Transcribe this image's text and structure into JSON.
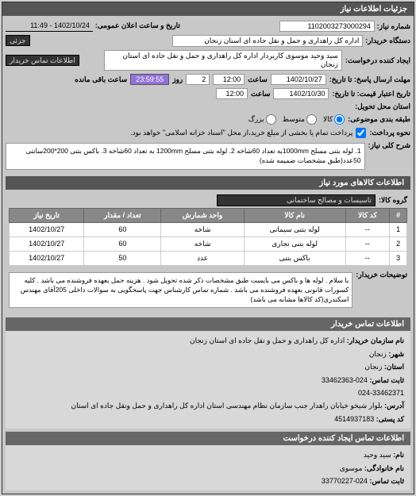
{
  "panels": {
    "details_title": "جزئیات اطلاعات نیاز",
    "contact_title": "اطلاعات تماس ایجاد کننده درخواست",
    "buyer_contact_title": "اطلاعات تماس خریدار"
  },
  "header": {
    "req_number_label": "شماره نیاز:",
    "req_number": "1102003273000294",
    "announce_label": "تاریخ و ساعت اعلان عمومی:",
    "announce_date": "1402/10/24 - 11:49",
    "buyer_label": "دستگاه خریدار:",
    "buyer": "اداره کل راهداری و حمل و نقل جاده ای استان زنجان",
    "partial_label": "جزئی",
    "requester_label": "ایجاد کننده درخواست:",
    "requester": "سید وحید موسوی کاربردار اداره کل راهداری و حمل و نقل جاده ای استان زنجان",
    "buyer_contact_btn": "اطلاعات تماس خریدار"
  },
  "deadlines": {
    "response_deadline_label": "مهلت ارسال پاسخ: تا تاریخ:",
    "response_date": "1402/10/27",
    "time_label": "ساعت",
    "response_time": "12:00",
    "days_label": "روز",
    "days": "2",
    "remaining_time": "23:59:55",
    "remaining_label": "ساعت باقی مانده",
    "validity_label": "تاریخ اعتبار قیمت: تا تاریخ:",
    "validity_date": "1402/10/30",
    "validity_time": "12:00"
  },
  "delivery": {
    "location_label": "استان محل تحویل:",
    "grouping_label": "طبقه بندی موضوعی:",
    "grouping_options": {
      "goods": "کالا",
      "medium": "متوسط",
      "large": "بزرگ"
    },
    "method_label": "نحوه پرداخت:",
    "method_text": "پرداخت تمام یا بخشی از مبلغ خرید،از محل \"اسناد خزانه اسلامی\" خواهد بود."
  },
  "spec": {
    "title_label": "شرح کلی نیاز:",
    "text": "1. لوله بتنی مسلح 1000mmبه تعداد 60شاخه 2. لوله بتنی مسلح 1200mm به تعداد 60شاخه 3. باکس بتنی 200*200سانتی 50عدد(طبق مشخصات ضمیمه شده)"
  },
  "goods_section": {
    "title": "اطلاعات کالاهای مورد نیاز",
    "group_label": "گروه کالا:",
    "group_value": "تاسیسات و مصالح ساختمانی"
  },
  "table": {
    "headers": {
      "row": "#",
      "code": "کد کالا",
      "name": "نام کالا",
      "unit": "واحد شمارش",
      "qty": "تعداد / مقدار",
      "date": "تاریخ نیاز"
    },
    "rows": [
      {
        "n": "1",
        "code": "--",
        "name": "لوله بتنی سیمانی",
        "unit": "شاخه",
        "qty": "60",
        "date": "1402/10/27"
      },
      {
        "n": "2",
        "code": "--",
        "name": "لوله بتنی تجاری",
        "unit": "شاخه",
        "qty": "60",
        "date": "1402/10/27"
      },
      {
        "n": "3",
        "code": "--",
        "name": "باکس بتنی",
        "unit": "عدد",
        "qty": "50",
        "date": "1402/10/27"
      }
    ]
  },
  "notes": {
    "label": "توضیحات خریدار:",
    "text": "با سلام . لوله ها و باکس می بایست طبق مشخصات ذکر شده تحویل شود . هزینه حمل بعهده فروشنده می باشد . کلیه کسورات قانونی بعهده فروشنده می باشد . شماره تماس کارشناس جهت پاسخگویی به سوالات داخلی 205آقای مهندس اسکندری(کد کالاها مشابه می باشد)"
  },
  "contact": {
    "org_label": "نام سازمان خریدار:",
    "org": "اداره کل راهداری و حمل و نقل جاده ای استان زنجان",
    "city_label": "شهر:",
    "city": "زنجان",
    "province_label": "استان:",
    "province": "زنجان",
    "phone_label": "ثابت تماس:",
    "phone1": "024-33462363",
    "phone2": "024-33462371",
    "address_label": "آدرس:",
    "address": "بلوار شیخو خیابان راهدار جنب سازمان نظام مهندسی استان اداره کل راهداری و حمل ونقل جاده ای استان",
    "postal_label": "کد پستی:",
    "postal": "4514937183"
  },
  "creator": {
    "name_label": "نام:",
    "name": "سید وحید",
    "family_label": "نام خانوادگی:",
    "family": "موسوی",
    "phone_label": "ثابت تماس:",
    "phone": "024-33770227"
  }
}
